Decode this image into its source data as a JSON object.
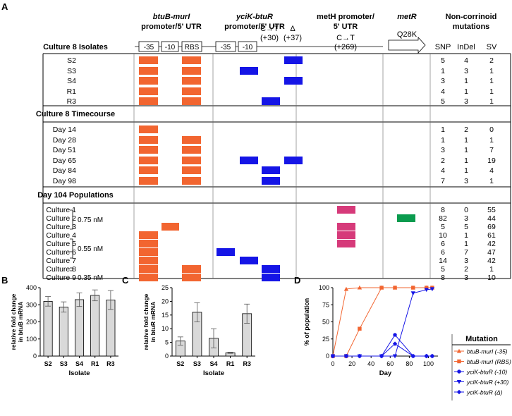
{
  "panel_labels": {
    "A": "A",
    "B": "B",
    "C": "C",
    "D": "D"
  },
  "header": {
    "btub_title_1": "btuB-murI",
    "btub_title_2": "promoter/5' UTR",
    "btub_boxes": [
      "-35",
      "-10",
      "RBS"
    ],
    "ycik_title_1": "yciK-btuR",
    "ycik_title_2": "promoter/5' UTR",
    "ycik_boxes": [
      "-35",
      "-10"
    ],
    "ycik_mut1_top": "C→T",
    "ycik_mut1_bot": "(+30)",
    "ycik_mut2_top": "Δ",
    "ycik_mut2_bot": "(+37)",
    "meth_title_1": "metH promoter/",
    "meth_title_2": "5' UTR",
    "meth_mut_top": "C→T",
    "meth_mut_bot": "(+269)",
    "metr_title": "metR",
    "metr_mut": "Q28K",
    "noncorr_title_1": "Non-corrinoid",
    "noncorr_title_2": "mutations",
    "col_snp": "SNP",
    "col_indel": "InDel",
    "col_sv": "SV",
    "section1_title": "Culture 8 Isolates"
  },
  "section2_title": "Culture 8 Timecourse",
  "section3_title": "Day 104 Populations",
  "colors": {
    "orange": "#f26530",
    "blue": "#1515e6",
    "pink": "#d63a7a",
    "green": "#0a9b4e",
    "bar": "#d9d9d9"
  },
  "rows": [
    {
      "label": "S2",
      "marks": [
        "b35",
        "bRBS",
        "y37"
      ],
      "snp": "5",
      "indel": "4",
      "sv": "2"
    },
    {
      "label": "S3",
      "marks": [
        "b35",
        "bRBS",
        "y10"
      ],
      "snp": "1",
      "indel": "3",
      "sv": "1"
    },
    {
      "label": "S4",
      "marks": [
        "b35",
        "bRBS",
        "y37"
      ],
      "snp": "3",
      "indel": "1",
      "sv": "1"
    },
    {
      "label": "R1",
      "marks": [
        "b35",
        "bRBS"
      ],
      "snp": "4",
      "indel": "1",
      "sv": "1"
    },
    {
      "label": "R3",
      "marks": [
        "b35",
        "bRBS",
        "y30"
      ],
      "snp": "5",
      "indel": "3",
      "sv": "1"
    },
    {
      "label": "Day 14",
      "marks": [
        "b35"
      ],
      "snp": "1",
      "indel": "2",
      "sv": "0"
    },
    {
      "label": "Day 28",
      "marks": [
        "b35",
        "bRBS"
      ],
      "snp": "1",
      "indel": "1",
      "sv": "1"
    },
    {
      "label": "Day 51",
      "marks": [
        "b35",
        "bRBS"
      ],
      "snp": "3",
      "indel": "1",
      "sv": "7"
    },
    {
      "label": "Day 65",
      "marks": [
        "b35",
        "bRBS",
        "y10",
        "y37"
      ],
      "snp": "2",
      "indel": "1",
      "sv": "19"
    },
    {
      "label": "Day 84",
      "marks": [
        "b35",
        "bRBS",
        "y30"
      ],
      "snp": "4",
      "indel": "1",
      "sv": "4"
    },
    {
      "label": "Day 98",
      "marks": [
        "b35",
        "bRBS",
        "y30"
      ],
      "snp": "7",
      "indel": "3",
      "sv": "1"
    },
    {
      "label": "Culture 1",
      "marks": [
        "meth"
      ],
      "snp": "8",
      "indel": "0",
      "sv": "55"
    },
    {
      "label": "Culture 2",
      "marks": [
        "metr"
      ],
      "snp": "82",
      "indel": "3",
      "sv": "44"
    },
    {
      "label": "Culture 3",
      "marks": [
        "b10",
        "meth"
      ],
      "snp": "5",
      "indel": "5",
      "sv": "69"
    },
    {
      "label": "Culture 4",
      "marks": [
        "b35",
        "meth"
      ],
      "snp": "10",
      "indel": "1",
      "sv": "61"
    },
    {
      "label": "Culture 5",
      "marks": [
        "b35",
        "meth"
      ],
      "snp": "6",
      "indel": "1",
      "sv": "42"
    },
    {
      "label": "Culture 6",
      "marks": [
        "b35",
        "y35"
      ],
      "snp": "6",
      "indel": "7",
      "sv": "47"
    },
    {
      "label": "Culture 7",
      "marks": [
        "b35",
        "y10"
      ],
      "snp": "14",
      "indel": "3",
      "sv": "42"
    },
    {
      "label": "Culture 8",
      "marks": [
        "b35",
        "bRBS",
        "y30"
      ],
      "snp": "5",
      "indel": "2",
      "sv": "1"
    },
    {
      "label": "Culture 9",
      "marks": [
        "b35",
        "bRBS",
        "y30"
      ],
      "snp": "8",
      "indel": "3",
      "sv": "10"
    }
  ],
  "conc_labels": [
    "0.75 nM",
    "0.55 nM",
    "0.35 nM"
  ],
  "chart_data": [
    {
      "type": "bar",
      "panel": "B",
      "categories": [
        "S2",
        "S3",
        "S4",
        "R1",
        "R3"
      ],
      "values": [
        320,
        287,
        330,
        355,
        328
      ],
      "errors": [
        28,
        30,
        40,
        32,
        55
      ],
      "xlabel": "Isolate",
      "ylabel_1": "relative fold change",
      "ylabel_2": "in btuB mRNA",
      "yticks": [
        "0",
        "100",
        "200",
        "300",
        "400"
      ],
      "ylim": [
        0,
        400
      ]
    },
    {
      "type": "bar",
      "panel": "C",
      "categories": [
        "S2",
        "S3",
        "S4",
        "R1",
        "R3"
      ],
      "values": [
        5.5,
        16,
        6.5,
        1.2,
        15.5
      ],
      "errors": [
        1.5,
        3.5,
        3.5,
        0.2,
        3.5
      ],
      "xlabel": "Isolate",
      "ylabel_1": "relative fold change",
      "ylabel_2": "in btuR mRNA",
      "yticks": [
        "0",
        "5",
        "10",
        "15",
        "20",
        "25"
      ],
      "ylim": [
        0,
        25
      ]
    },
    {
      "type": "line",
      "panel": "D",
      "xlabel": "Day",
      "ylabel": "% of population",
      "xticks": [
        "0",
        "20",
        "40",
        "60",
        "80",
        "100"
      ],
      "yticks": [
        "0",
        "25",
        "50",
        "75",
        "100"
      ],
      "xlim": [
        0,
        110
      ],
      "ylim": [
        0,
        100
      ],
      "legend_title": "Mutation",
      "series": [
        {
          "name": "btuB-murI (-35)",
          "color": "#f26530",
          "marker": "triangle",
          "x": [
            0,
            14,
            28,
            51,
            65,
            84,
            98,
            104
          ],
          "y": [
            0,
            98,
            100,
            100,
            100,
            100,
            100,
            100
          ]
        },
        {
          "name": "btuB-murI (RBS)",
          "color": "#f26530",
          "marker": "square",
          "x": [
            0,
            14,
            28,
            51,
            65,
            84,
            98,
            104
          ],
          "y": [
            0,
            0,
            40,
            100,
            100,
            100,
            100,
            100
          ]
        },
        {
          "name": "yciK-btuR (-10)",
          "color": "#1515e6",
          "marker": "circle",
          "x": [
            0,
            14,
            28,
            51,
            65,
            84,
            98,
            104
          ],
          "y": [
            0,
            0,
            0,
            0,
            31,
            0,
            0,
            0
          ]
        },
        {
          "name": "yciK-btuR (+30)",
          "color": "#1515e6",
          "marker": "tri-down",
          "x": [
            0,
            14,
            28,
            51,
            65,
            84,
            98,
            104
          ],
          "y": [
            0,
            0,
            0,
            0,
            0,
            92,
            97,
            98
          ]
        },
        {
          "name": "yciK-btuR (Δ)",
          "color": "#1515e6",
          "marker": "diamond",
          "x": [
            0,
            14,
            28,
            51,
            65,
            84,
            98,
            104
          ],
          "y": [
            0,
            0,
            0,
            0,
            18,
            0,
            0,
            0
          ]
        }
      ]
    }
  ]
}
